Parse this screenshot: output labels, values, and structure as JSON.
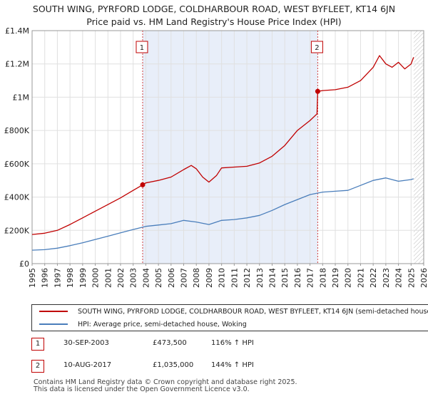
{
  "title_line1": "SOUTH WING, PYRFORD LODGE, COLDHARBOUR ROAD, WEST BYFLEET, KT14 6JN",
  "title_line2": "Price paid vs. HM Land Registry's House Price Index (HPI)",
  "chart_data": {
    "type": "line",
    "title": "SOUTH WING, PYRFORD LODGE, COLDHARBOUR ROAD, WEST BYFLEET, KT14 6JN — Price paid vs. HM Land Registry's House Price Index (HPI)",
    "xlabel": "",
    "ylabel": "",
    "xlim": [
      1995,
      2026
    ],
    "ylim": [
      0,
      1400000
    ],
    "x_ticks": [
      "1995",
      "1996",
      "1997",
      "1998",
      "1999",
      "2000",
      "2001",
      "2002",
      "2003",
      "2004",
      "2005",
      "2006",
      "2007",
      "2008",
      "2009",
      "2010",
      "2011",
      "2012",
      "2013",
      "2014",
      "2015",
      "2016",
      "2017",
      "2018",
      "2019",
      "2020",
      "2021",
      "2022",
      "2023",
      "2024",
      "2025",
      "2026"
    ],
    "y_ticks": [
      {
        "value": 0,
        "label": "£0"
      },
      {
        "value": 200000,
        "label": "£200K"
      },
      {
        "value": 400000,
        "label": "£400K"
      },
      {
        "value": 600000,
        "label": "£600K"
      },
      {
        "value": 800000,
        "label": "£800K"
      },
      {
        "value": 1000000,
        "label": "£1M"
      },
      {
        "value": 1200000,
        "label": "£1.2M"
      },
      {
        "value": 1400000,
        "label": "£1.4M"
      }
    ],
    "shaded_region": [
      2003.75,
      2017.61
    ],
    "hatched_from": 2025.2,
    "series": [
      {
        "name": "SOUTH WING, PYRFORD LODGE, COLDHARBOUR ROAD, WEST BYFLEET, KT14 6JN (semi-detached house)",
        "color": "#c00000",
        "x": [
          1995,
          1996,
          1997,
          1998,
          1999,
          2000,
          2001,
          2002,
          2003,
          2003.75,
          2004,
          2005,
          2006,
          2007,
          2007.6,
          2008,
          2008.5,
          2009,
          2009.6,
          2010,
          2011,
          2012,
          2013,
          2014,
          2015,
          2016,
          2017,
          2017.55,
          2017.61,
          2018,
          2019,
          2020,
          2021,
          2022,
          2022.5,
          2023,
          2023.5,
          2024,
          2024.5,
          2025,
          2025.2
        ],
        "y": [
          175000,
          183000,
          200000,
          235000,
          275000,
          315000,
          355000,
          395000,
          440000,
          473500,
          485000,
          500000,
          520000,
          565000,
          590000,
          570000,
          520000,
          490000,
          530000,
          575000,
          580000,
          585000,
          605000,
          645000,
          710000,
          800000,
          860000,
          900000,
          1035000,
          1040000,
          1045000,
          1060000,
          1100000,
          1180000,
          1250000,
          1200000,
          1180000,
          1210000,
          1170000,
          1200000,
          1240000
        ]
      },
      {
        "name": "HPI: Average price, semi-detached house, Woking",
        "color": "#4a7ebb",
        "x": [
          1995,
          1996,
          1997,
          1998,
          1999,
          2000,
          2001,
          2002,
          2003,
          2004,
          2005,
          2006,
          2007,
          2008,
          2009,
          2010,
          2011,
          2012,
          2013,
          2014,
          2015,
          2016,
          2017,
          2018,
          2019,
          2020,
          2021,
          2022,
          2023,
          2024,
          2025,
          2025.2
        ],
        "y": [
          81000,
          84000,
          93000,
          108000,
          125000,
          145000,
          165000,
          185000,
          205000,
          224000,
          232000,
          240000,
          260000,
          250000,
          235000,
          260000,
          265000,
          275000,
          290000,
          320000,
          355000,
          385000,
          415000,
          430000,
          435000,
          440000,
          470000,
          500000,
          515000,
          495000,
          505000,
          510000
        ]
      }
    ],
    "annotations": [
      {
        "label": "1",
        "x": 2003.75,
        "y": 473500
      },
      {
        "label": "2",
        "x": 2017.61,
        "y": 1035000
      }
    ]
  },
  "legend": {
    "items": [
      {
        "label": "SOUTH WING, PYRFORD LODGE, COLDHARBOUR ROAD, WEST BYFLEET, KT14 6JN (semi-detached house)",
        "color": "#c00000"
      },
      {
        "label": "HPI: Average price, semi-detached house, Woking",
        "color": "#4a7ebb"
      }
    ]
  },
  "transactions": [
    {
      "num": "1",
      "date": "30-SEP-2003",
      "price": "£473,500",
      "hpi": "116% ↑ HPI"
    },
    {
      "num": "2",
      "date": "10-AUG-2017",
      "price": "£1,035,000",
      "hpi": "144% ↑ HPI"
    }
  ],
  "footer": {
    "line1": "Contains HM Land Registry data © Crown copyright and database right 2025.",
    "line2": "This data is licensed under the Open Government Licence v3.0."
  }
}
